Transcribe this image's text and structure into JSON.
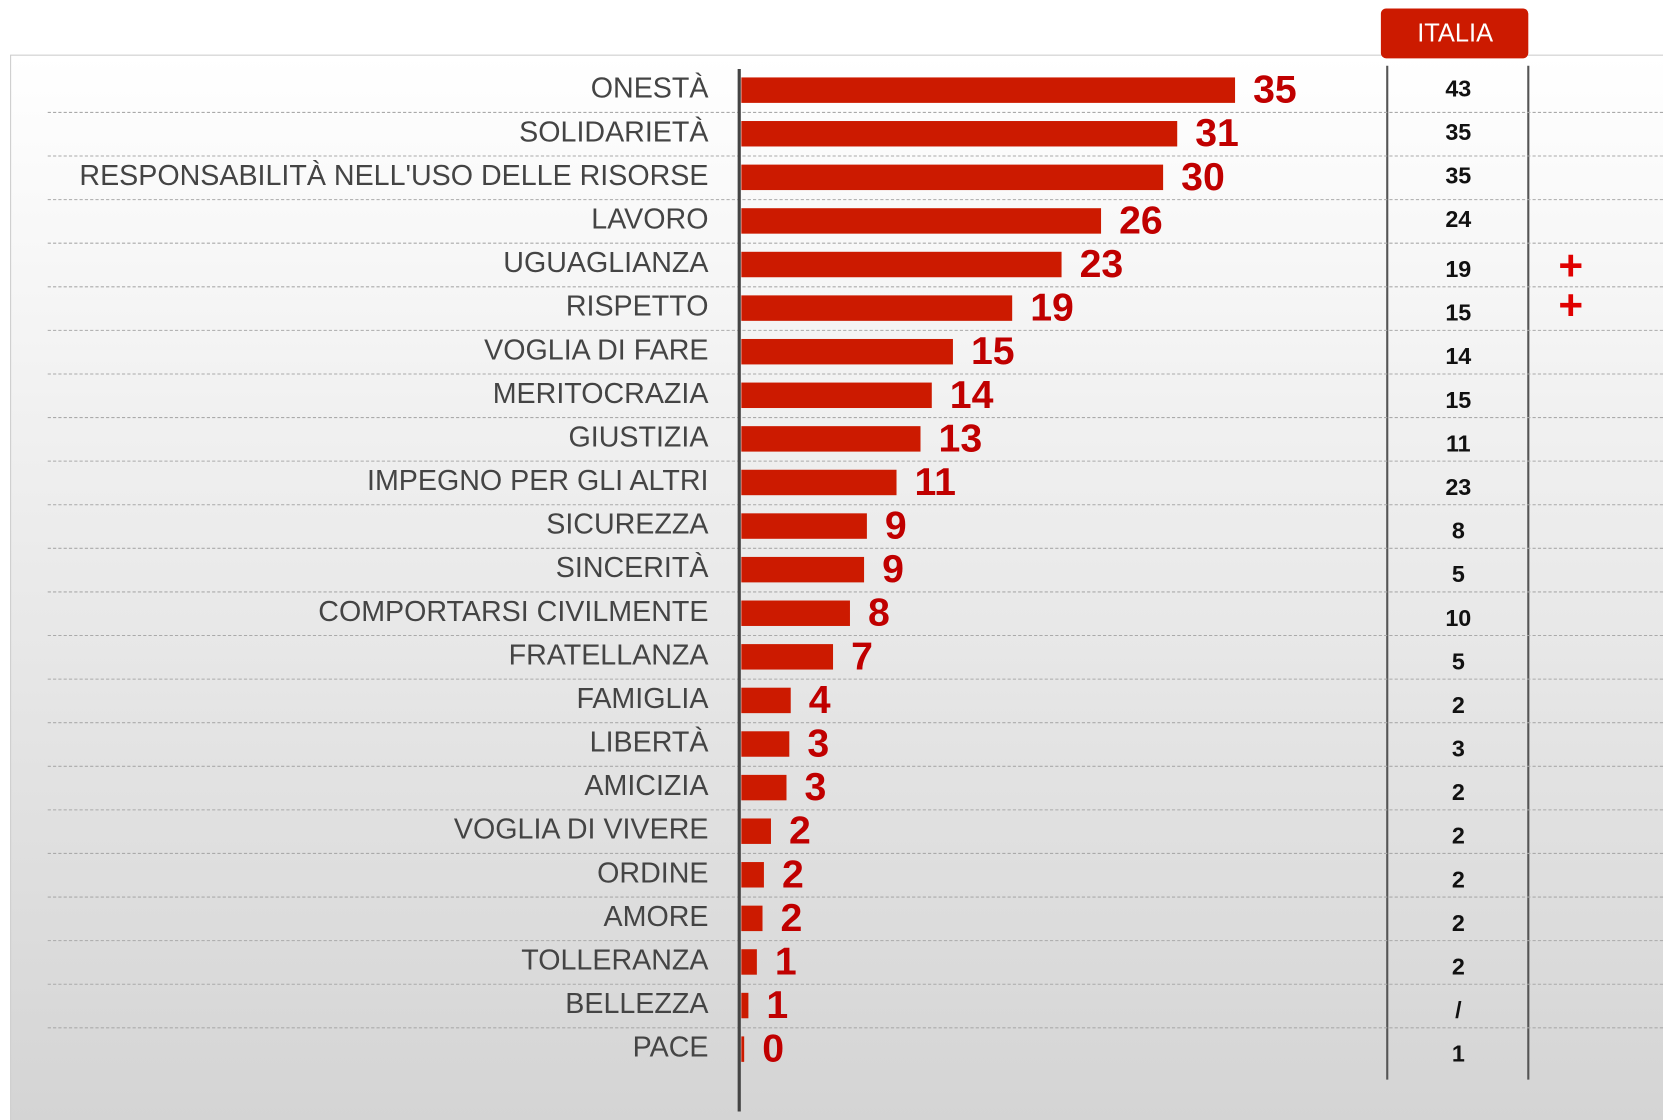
{
  "chart_data": {
    "type": "bar",
    "orientation": "horizontal",
    "color": "#cc1a00",
    "label_color": "#c00000",
    "xlim": [
      0,
      40
    ],
    "categories": [
      "ONESTÀ",
      "SOLIDARIETÀ",
      "RESPONSABILITÀ NELL'USO DELLE RISORSE",
      "LAVORO",
      "UGUAGLIANZA",
      "RISPETTO",
      "VOGLIA DI FARE",
      "MERITOCRAZIA",
      "GIUSTIZIA",
      "IMPEGNO PER GLI ALTRI",
      "SICUREZZA",
      "SINCERITÀ",
      "COMPORTARSI CIVILMENTE",
      "FRATELLANZA",
      "FAMIGLIA",
      "LIBERTÀ",
      "AMICIZIA",
      "VOGLIA DI VIVERE",
      "ORDINE",
      "AMORE",
      "TOLLERANZA",
      "BELLEZZA",
      "PACE"
    ],
    "values": [
      35,
      30.9,
      29.9,
      25.5,
      22.7,
      19.2,
      15,
      13.5,
      12.7,
      11,
      8.9,
      8.7,
      7.7,
      6.5,
      3.5,
      3.4,
      3.2,
      2.1,
      1.6,
      1.5,
      1.1,
      0.5,
      0.2
    ],
    "value_labels": [
      "35",
      "31",
      "30",
      "26",
      "23",
      "19",
      "15",
      "14",
      "13",
      "11",
      "9",
      "9",
      "8",
      "7",
      "4",
      "3",
      "3",
      "2",
      "2",
      "2",
      "1",
      "1",
      "0"
    ],
    "table": {
      "title": "ITALIA",
      "values": [
        43,
        35,
        35,
        24,
        19,
        15,
        14,
        15,
        11,
        23,
        8,
        5,
        10,
        5,
        2,
        3,
        2,
        2,
        2,
        2,
        2,
        "/",
        1
      ],
      "flags": [
        null,
        null,
        null,
        null,
        "+",
        "+",
        null,
        null,
        null,
        null,
        null,
        null,
        null,
        null,
        null,
        null,
        null,
        null,
        null,
        null,
        null,
        null,
        null
      ]
    }
  }
}
